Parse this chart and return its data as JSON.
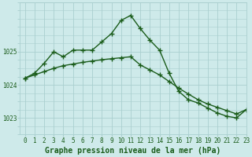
{
  "title": "Graphe pression niveau de la mer (hPa)",
  "background_color": "#ceeaea",
  "grid_color": "#aacfcf",
  "line_color": "#1a5c1a",
  "xlim": [
    -0.5,
    23
  ],
  "ylim": [
    1022.5,
    1026.5
  ],
  "yticks": [
    1023,
    1024,
    1025
  ],
  "xticks": [
    0,
    1,
    2,
    3,
    4,
    5,
    6,
    7,
    8,
    9,
    10,
    11,
    12,
    13,
    14,
    15,
    16,
    17,
    18,
    19,
    20,
    21,
    22,
    23
  ],
  "series1_x": [
    0,
    1,
    2,
    3,
    4,
    5,
    6,
    7,
    8,
    9,
    10,
    11,
    12,
    13,
    14,
    15,
    16,
    17,
    18,
    19,
    20,
    21,
    22,
    23
  ],
  "series1_y": [
    1024.2,
    1024.35,
    1024.65,
    1025.0,
    1024.85,
    1025.05,
    1025.05,
    1025.05,
    1025.3,
    1025.55,
    1025.95,
    1026.1,
    1025.7,
    1025.35,
    1025.05,
    1024.35,
    1023.8,
    1023.55,
    1023.45,
    1023.3,
    1023.15,
    1023.05,
    1023.0,
    1023.25
  ],
  "series2_x": [
    0,
    1,
    2,
    3,
    4,
    5,
    6,
    7,
    8,
    9,
    10,
    11,
    12,
    13,
    14,
    15,
    16,
    17,
    18,
    19,
    20,
    21,
    22,
    23
  ],
  "series2_y": [
    1024.2,
    1024.3,
    1024.4,
    1024.5,
    1024.58,
    1024.63,
    1024.68,
    1024.72,
    1024.76,
    1024.79,
    1024.82,
    1024.85,
    1024.6,
    1024.45,
    1024.3,
    1024.1,
    1023.9,
    1023.72,
    1023.55,
    1023.42,
    1023.32,
    1023.22,
    1023.12,
    1023.25
  ],
  "marker": "+",
  "marker_size": 4,
  "linewidth": 1.0,
  "title_fontsize": 7,
  "tick_fontsize": 5.5
}
